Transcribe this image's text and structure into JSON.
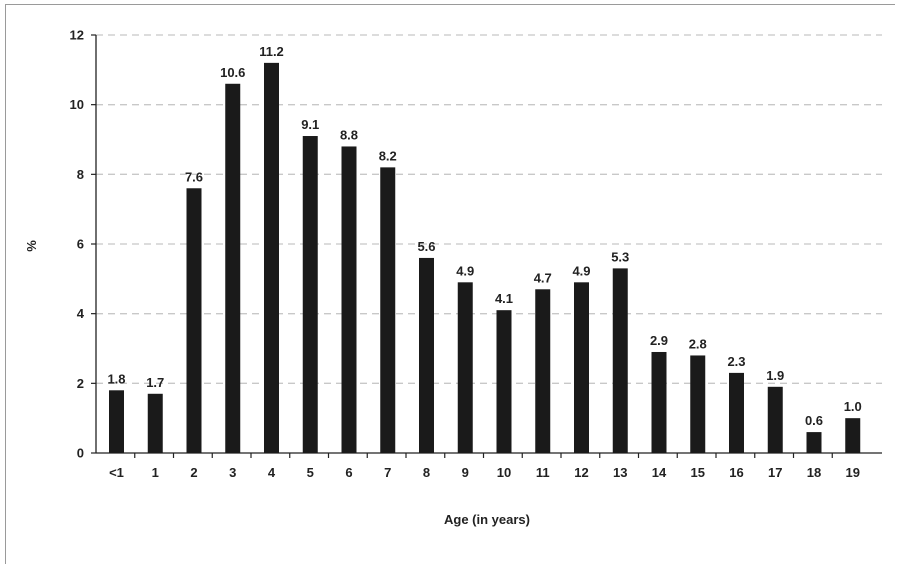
{
  "chart_data": {
    "type": "bar",
    "xlabel": "Age (in years)",
    "ylabel": "%",
    "ylim": [
      0,
      12
    ],
    "yticks": [
      "0",
      "2",
      "4",
      "6",
      "8",
      "10",
      "12"
    ],
    "categories": [
      "<1",
      "1",
      "2",
      "3",
      "4",
      "5",
      "6",
      "7",
      "8",
      "9",
      "10",
      "11",
      "12",
      "13",
      "14",
      "15",
      "16",
      "17",
      "18",
      "19"
    ],
    "values": [
      1.8,
      1.7,
      7.6,
      10.6,
      11.2,
      9.1,
      8.8,
      8.2,
      5.6,
      4.9,
      4.1,
      4.7,
      4.9,
      5.3,
      2.9,
      2.8,
      2.3,
      1.9,
      0.6,
      1.0
    ],
    "value_labels": [
      "1.8",
      "1.7",
      "7.6",
      "10.6",
      "11.2",
      "9.1",
      "8.8",
      "8.2",
      "5.6",
      "4.9",
      "4.1",
      "4.7",
      "4.9",
      "5.3",
      "2.9",
      "2.8",
      "2.3",
      "1.9",
      "0.6",
      "1.0"
    ],
    "grid": "horizontal dashed",
    "bar_color": "#1a1a1a",
    "grid_color": "#c8c8c8"
  }
}
